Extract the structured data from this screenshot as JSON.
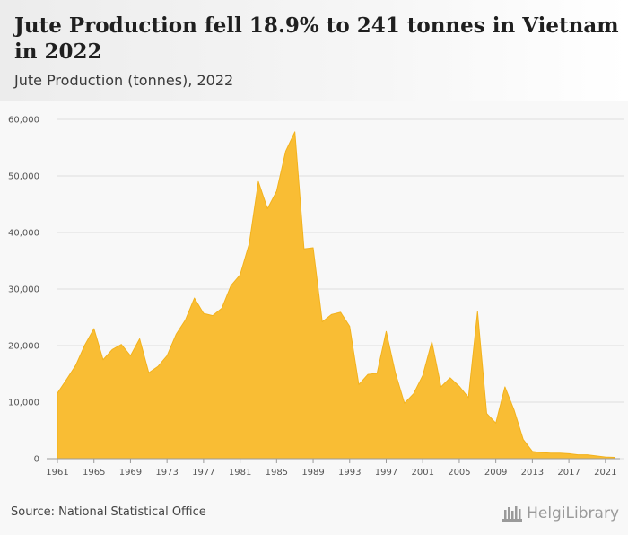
{
  "header": {
    "title": "Jute Production fell 18.9% to 241 tonnes in Vietnam in 2022",
    "subtitle": "Jute Production (tonnes), 2022"
  },
  "footer": {
    "source": "Source: National Statistical Office",
    "brand": "HelgiLibrary",
    "brand_icon": "library-icon"
  },
  "colors": {
    "area_fill": "#f9bd34",
    "area_stroke": "#f2b21d",
    "grid": "#dedede",
    "plot_bg": "#f8f8f8"
  },
  "chart_data": {
    "type": "area",
    "title": "Jute Production fell 18.9% to 241 tonnes in Vietnam in 2022",
    "subtitle": "Jute Production (tonnes), 2022",
    "xlabel": "",
    "ylabel": "",
    "ylim": [
      0,
      60000
    ],
    "yticks": [
      0,
      10000,
      20000,
      30000,
      40000,
      50000,
      60000
    ],
    "ytick_labels": [
      "0",
      "10,000",
      "20,000",
      "30,000",
      "40,000",
      "50,000",
      "60,000"
    ],
    "xlim": [
      1961,
      2022
    ],
    "xticks": [
      1961,
      1965,
      1969,
      1973,
      1977,
      1981,
      1985,
      1989,
      1993,
      1997,
      2001,
      2005,
      2009,
      2013,
      2017,
      2021
    ],
    "grid": true,
    "legend": "none",
    "x": [
      1961,
      1962,
      1963,
      1964,
      1965,
      1966,
      1967,
      1968,
      1969,
      1970,
      1971,
      1972,
      1973,
      1974,
      1975,
      1976,
      1977,
      1978,
      1979,
      1980,
      1981,
      1982,
      1983,
      1984,
      1985,
      1986,
      1987,
      1988,
      1989,
      1990,
      1991,
      1992,
      1993,
      1994,
      1995,
      1996,
      1997,
      1998,
      1999,
      2000,
      2001,
      2002,
      2003,
      2004,
      2005,
      2006,
      2007,
      2008,
      2009,
      2010,
      2011,
      2012,
      2013,
      2014,
      2015,
      2016,
      2017,
      2018,
      2019,
      2020,
      2021,
      2022
    ],
    "values": [
      11600,
      14000,
      16500,
      20100,
      23000,
      17500,
      19300,
      20200,
      18200,
      21200,
      15200,
      16300,
      18200,
      22000,
      24500,
      28400,
      25700,
      25300,
      26600,
      30600,
      32500,
      38000,
      49000,
      44200,
      47300,
      54400,
      57800,
      37100,
      37300,
      24200,
      25500,
      25900,
      23400,
      13100,
      14900,
      15100,
      22500,
      15200,
      9800,
      11500,
      14700,
      20700,
      12700,
      14300,
      12800,
      10800,
      26000,
      8000,
      6300,
      12700,
      8600,
      3400,
      1300,
      1100,
      1000,
      1000,
      900,
      700,
      700,
      500,
      297,
      241
    ]
  }
}
